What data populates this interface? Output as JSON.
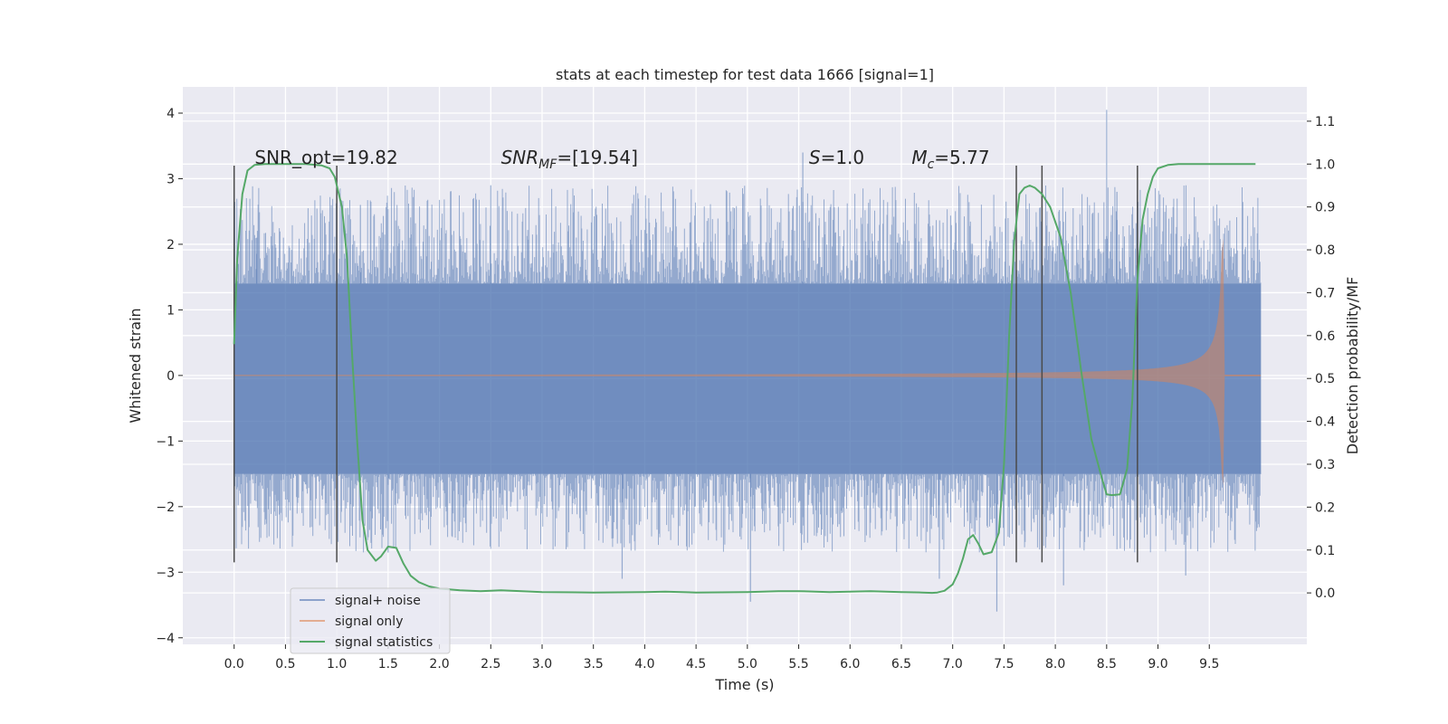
{
  "chart_data": {
    "type": "line",
    "title": "stats at each timestep for test data 1666 [signal=1]",
    "xlabel": "Time (s)",
    "ylabel": "Whitened strain",
    "y2label": "Detection probability/MF",
    "xlim": [
      -0.5,
      10.45
    ],
    "ylim": [
      -4.1,
      4.4
    ],
    "y2lim": [
      -0.12,
      1.18
    ],
    "x_ticks": [
      "0.0",
      "0.5",
      "1.0",
      "1.5",
      "2.0",
      "2.5",
      "3.0",
      "3.5",
      "4.0",
      "4.5",
      "5.0",
      "5.5",
      "6.0",
      "6.5",
      "7.0",
      "7.5",
      "8.0",
      "8.5",
      "9.0",
      "9.5"
    ],
    "y_ticks": [
      "4",
      "3",
      "2",
      "1",
      "0",
      "−1",
      "−2",
      "−3",
      "−4"
    ],
    "y2_ticks": [
      "1.1",
      "1.0",
      "0.9",
      "0.8",
      "0.7",
      "0.6",
      "0.5",
      "0.4",
      "0.3",
      "0.2",
      "0.1",
      "0.0"
    ],
    "grid": true,
    "legend_position": "lower-left",
    "annotations": [
      {
        "label": "SNR_opt=19.82",
        "x": 0.2,
        "y": 3.2
      },
      {
        "label": "SNR",
        "sub": "MF",
        "suffix": "=[19.54]",
        "x": 2.6,
        "y": 3.2
      },
      {
        "label": "S",
        "suffix": "=1.0",
        "x": 5.6,
        "y": 3.2
      },
      {
        "label": "M",
        "sub": "c",
        "suffix": "=5.77",
        "x": 6.6,
        "y": 3.2
      }
    ],
    "vertical_lines": [
      0.0,
      1.0,
      7.62,
      7.87,
      8.8
    ],
    "vertical_line_range": [
      -2.85,
      3.2
    ],
    "series": [
      {
        "name": "signal+ noise",
        "color": "#4c72b0",
        "axis": "left",
        "x_range": [
          0.0,
          10.0
        ],
        "envelope_upper": 1.4,
        "envelope_lower": -1.5,
        "peaks": [
          [
            0.04,
            1.7
          ],
          [
            0.22,
            2.1
          ],
          [
            1.23,
            2.6
          ],
          [
            1.5,
            -2.7
          ],
          [
            2.5,
            2.9
          ],
          [
            3.78,
            -3.1
          ],
          [
            5.03,
            -3.45
          ],
          [
            5.54,
            3.4
          ],
          [
            6.87,
            -3.1
          ],
          [
            7.43,
            -3.6
          ],
          [
            7.5,
            -2.6
          ],
          [
            8.08,
            -3.2
          ],
          [
            8.5,
            4.05
          ],
          [
            8.6,
            2.8
          ],
          [
            9.27,
            -3.05
          ]
        ]
      },
      {
        "name": "signal only",
        "color": "#dd8452",
        "axis": "left",
        "x_range": [
          0.0,
          10.0
        ],
        "chirp_end": 9.65,
        "amplitude_start": 0.01,
        "amplitude_end": 2.1
      },
      {
        "name": "signal statistics",
        "color": "#55a868",
        "axis": "right",
        "x": [
          0.0,
          0.03,
          0.08,
          0.13,
          0.2,
          0.3,
          0.5,
          0.7,
          0.85,
          0.93,
          0.98,
          1.05,
          1.1,
          1.15,
          1.2,
          1.25,
          1.3,
          1.38,
          1.43,
          1.5,
          1.58,
          1.65,
          1.72,
          1.8,
          1.9,
          2.0,
          2.2,
          2.4,
          2.6,
          2.8,
          3.0,
          3.5,
          4.0,
          4.2,
          4.5,
          5.0,
          5.3,
          5.5,
          5.8,
          6.0,
          6.2,
          6.5,
          6.7,
          6.8,
          6.85,
          6.92,
          7.0,
          7.05,
          7.1,
          7.15,
          7.2,
          7.25,
          7.3,
          7.38,
          7.45,
          7.5,
          7.55,
          7.6,
          7.65,
          7.7,
          7.75,
          7.8,
          7.87,
          7.95,
          8.05,
          8.15,
          8.25,
          8.35,
          8.45,
          8.5,
          8.55,
          8.63,
          8.7,
          8.75,
          8.8,
          8.85,
          8.9,
          8.95,
          9.0,
          9.1,
          9.2,
          9.4,
          9.6,
          9.8,
          9.95
        ],
        "values": [
          0.58,
          0.78,
          0.93,
          0.985,
          0.998,
          1.0,
          1.0,
          1.0,
          0.997,
          0.99,
          0.97,
          0.9,
          0.78,
          0.55,
          0.35,
          0.17,
          0.1,
          0.075,
          0.085,
          0.108,
          0.105,
          0.068,
          0.04,
          0.025,
          0.015,
          0.01,
          0.006,
          0.004,
          0.006,
          0.004,
          0.002,
          0.001,
          0.002,
          0.003,
          0.001,
          0.002,
          0.004,
          0.004,
          0.002,
          0.003,
          0.004,
          0.002,
          0.001,
          0.0,
          0.001,
          0.005,
          0.02,
          0.045,
          0.08,
          0.125,
          0.135,
          0.115,
          0.09,
          0.095,
          0.14,
          0.3,
          0.6,
          0.82,
          0.93,
          0.945,
          0.95,
          0.945,
          0.93,
          0.9,
          0.83,
          0.7,
          0.52,
          0.36,
          0.27,
          0.23,
          0.228,
          0.23,
          0.29,
          0.45,
          0.73,
          0.87,
          0.93,
          0.97,
          0.99,
          0.998,
          1.0,
          1.0,
          1.0,
          1.0,
          1.0
        ]
      }
    ]
  }
}
